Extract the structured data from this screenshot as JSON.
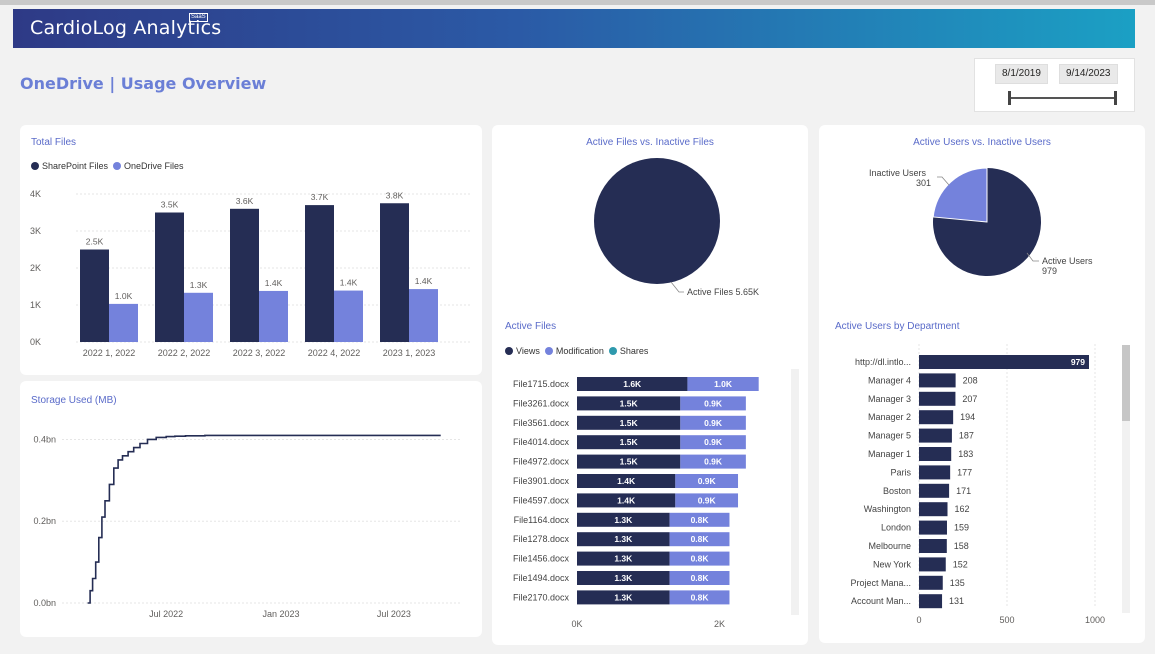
{
  "app": {
    "title": "CardioLog Analytics",
    "badge": "SaaS"
  },
  "page": {
    "title": "OneDrive | Usage Overview"
  },
  "slicer": {
    "start": "8/1/2019",
    "end": "9/14/2023"
  },
  "colors": {
    "dark": "#252d54",
    "light": "#7482dc",
    "teal": "#2e99ad",
    "title": "#5a6bc9"
  },
  "total_files": {
    "title": "Total Files"
  },
  "storage": {
    "title": "Storage Used (MB)"
  },
  "active_vs_inactive_files": {
    "title": "Active Files vs. Inactive Files"
  },
  "active_vs_inactive_users": {
    "title": "Active Users vs. Inactive Users"
  },
  "active_files": {
    "title": "Active Files"
  },
  "users_by_dept": {
    "title": "Active Users by Department"
  },
  "chart_data": [
    {
      "id": "total-files",
      "type": "bar",
      "title": "Total Files",
      "categories": [
        "2022 1, 2022",
        "2022 2, 2022",
        "2022 3, 2022",
        "2022 4, 2022",
        "2023 1, 2023"
      ],
      "series": [
        {
          "name": "SharePoint Files",
          "values": [
            2500,
            3500,
            3600,
            3700,
            3750
          ],
          "labels": [
            "2.5K",
            "3.5K",
            "3.6K",
            "3.7K",
            "3.8K"
          ]
        },
        {
          "name": "OneDrive Files",
          "values": [
            1030,
            1330,
            1380,
            1390,
            1430
          ],
          "labels": [
            "1.0K",
            "1.3K",
            "1.4K",
            "1.4K",
            "1.4K"
          ]
        }
      ],
      "yticks": [
        "0K",
        "1K",
        "2K",
        "3K",
        "4K"
      ],
      "ylim": [
        0,
        4000
      ]
    },
    {
      "id": "storage-used",
      "type": "line",
      "title": "Storage Used (MB)",
      "x": [
        "2022-02-25",
        "2022-03-01",
        "2022-03-05",
        "2022-03-10",
        "2022-03-15",
        "2022-03-20",
        "2022-03-25",
        "2022-04-01",
        "2022-04-08",
        "2022-04-15",
        "2022-04-22",
        "2022-05-01",
        "2022-05-10",
        "2022-05-20",
        "2022-06-01",
        "2022-06-15",
        "2022-07-01",
        "2022-07-15",
        "2022-08-01",
        "2022-09-01",
        "2022-10-01",
        "2023-01-01",
        "2023-04-01",
        "2023-07-01",
        "2023-09-14"
      ],
      "y": [
        0.0,
        0.03,
        0.06,
        0.1,
        0.16,
        0.21,
        0.25,
        0.29,
        0.33,
        0.35,
        0.36,
        0.37,
        0.38,
        0.39,
        0.4,
        0.405,
        0.407,
        0.408,
        0.409,
        0.41,
        0.41,
        0.41,
        0.41,
        0.41,
        0.41
      ],
      "yticks": [
        "0.0bn",
        "0.2bn",
        "0.4bn"
      ],
      "xticks": [
        "Jul 2022",
        "Jan 2023",
        "Jul 2023"
      ],
      "ylim": [
        0,
        0.45
      ]
    },
    {
      "id": "active-files-pie",
      "type": "pie",
      "title": "Active Files vs. Inactive Files",
      "slices": [
        {
          "name": "Active Files",
          "value": 5650,
          "label": "Active Files 5.65K"
        }
      ]
    },
    {
      "id": "active-users-pie",
      "type": "pie",
      "title": "Active Users vs. Inactive Users",
      "slices": [
        {
          "name": "Active Users",
          "value": 979,
          "label": "Active Users",
          "value_label": "979"
        },
        {
          "name": "Inactive Users",
          "value": 301,
          "label": "Inactive Users",
          "value_label": "301"
        }
      ]
    },
    {
      "id": "active-files-bars",
      "type": "bar",
      "orientation": "horizontal",
      "stacked": true,
      "title": "Active Files",
      "legend": [
        "Views",
        "Modification",
        "Shares"
      ],
      "categories": [
        "File1715.docx",
        "File3261.docx",
        "File3561.docx",
        "File4014.docx",
        "File4972.docx",
        "File3901.docx",
        "File4597.docx",
        "File1164.docx",
        "File1278.docx",
        "File1456.docx",
        "File1494.docx",
        "File2170.docx"
      ],
      "series": [
        {
          "name": "Views",
          "values": [
            1550,
            1450,
            1450,
            1450,
            1450,
            1380,
            1380,
            1300,
            1300,
            1300,
            1300,
            1300
          ],
          "labels": [
            "1.6K",
            "1.5K",
            "1.5K",
            "1.5K",
            "1.5K",
            "1.4K",
            "1.4K",
            "1.3K",
            "1.3K",
            "1.3K",
            "1.3K",
            "1.3K"
          ]
        },
        {
          "name": "Modification",
          "values": [
            1000,
            920,
            920,
            920,
            920,
            880,
            880,
            840,
            840,
            840,
            840,
            840
          ],
          "labels": [
            "1.0K",
            "0.9K",
            "0.9K",
            "0.9K",
            "0.9K",
            "0.9K",
            "0.9K",
            "0.8K",
            "0.8K",
            "0.8K",
            "0.8K",
            "0.8K"
          ]
        }
      ],
      "xticks": [
        "0K",
        "2K"
      ],
      "xlim": [
        0,
        3200
      ]
    },
    {
      "id": "users-by-dept",
      "type": "bar",
      "orientation": "horizontal",
      "title": "Active Users by Department",
      "categories": [
        "http://dl.intlo...",
        "Manager 4",
        "Manager 3",
        "Manager 2",
        "Manager 5",
        "Manager 1",
        "Paris",
        "Boston",
        "Washington",
        "London",
        "Melbourne",
        "New York",
        "Project Mana...",
        "Account Man..."
      ],
      "values": [
        979,
        208,
        207,
        194,
        187,
        183,
        177,
        171,
        162,
        159,
        158,
        152,
        135,
        131
      ],
      "xticks": [
        "0",
        "500",
        "1000"
      ],
      "xlim": [
        0,
        1000
      ]
    }
  ]
}
